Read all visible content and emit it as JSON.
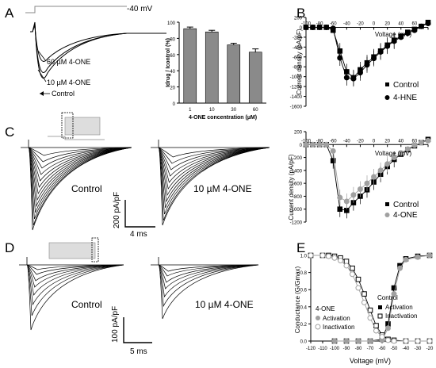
{
  "panel_labels": {
    "A": "A",
    "B": "B",
    "C": "C",
    "D": "D",
    "E": "E"
  },
  "panel_a": {
    "voltage_label": "-40 mV",
    "trace_labels": [
      "60 µM 4-ONE",
      "10 µM 4-ONE",
      "Control"
    ]
  },
  "panel_c": {
    "label_control": "Control",
    "label_drug": "10 µM 4-ONE",
    "scale_y": "200 pA/pF",
    "scale_x": "4 ms"
  },
  "panel_d": {
    "label_control": "Control",
    "label_drug": "10 µM 4-ONE",
    "scale_y": "100 pA/pF",
    "scale_x": "5 ms"
  },
  "chart_data": [
    {
      "id": "A-bar",
      "type": "bar",
      "categories": [
        "1",
        "10",
        "30",
        "60"
      ],
      "values": [
        92,
        88,
        72,
        63
      ],
      "errors": [
        2,
        2,
        2,
        4
      ],
      "ylabel": "Idrug / Icontrol (%)",
      "xlabel": "4-ONE concentration (µM)",
      "ylim": [
        0,
        100
      ],
      "yticks": [
        "0",
        "20",
        "40",
        "60",
        "80",
        "100"
      ],
      "bar_color": "#8a8a8a"
    },
    {
      "id": "B-IV",
      "type": "line",
      "ylabel": "Current density (pA/pF)",
      "xlabel": "Voltage (mV)",
      "xlim": [
        -100,
        80
      ],
      "ylim": [
        -1600,
        200
      ],
      "xticks": [
        "-100",
        "-80",
        "-60",
        "-40",
        "-20",
        "0",
        "20",
        "40",
        "60",
        "80"
      ],
      "yticks": [
        "200",
        "0",
        "-200",
        "-400",
        "-600",
        "-800",
        "-1000",
        "-1200",
        "-1400",
        "-1600"
      ],
      "legend": [
        "Control",
        "4-HNE"
      ],
      "series": [
        {
          "name": "Control",
          "marker": "square",
          "color": "#000000",
          "x": [
            -100,
            -90,
            -80,
            -70,
            -60,
            -50,
            -40,
            -30,
            -20,
            -10,
            0,
            10,
            20,
            30,
            40,
            50,
            60,
            70,
            80
          ],
          "y": [
            0,
            0,
            0,
            0,
            -60,
            -480,
            -900,
            -1020,
            -860,
            -720,
            -600,
            -480,
            -360,
            -260,
            -180,
            -100,
            -40,
            20,
            100
          ]
        },
        {
          "name": "4-HNE",
          "marker": "circle",
          "color": "#000000",
          "x": [
            -100,
            -90,
            -80,
            -70,
            -60,
            -50,
            -40,
            -30,
            -20,
            -10,
            0,
            10,
            20,
            30,
            40,
            50,
            60,
            70,
            80
          ],
          "y": [
            0,
            0,
            0,
            0,
            -20,
            -620,
            -1020,
            -1040,
            -920,
            -760,
            -630,
            -500,
            -380,
            -280,
            -200,
            -120,
            -60,
            20,
            80
          ]
        }
      ]
    },
    {
      "id": "C-IV",
      "type": "line",
      "ylabel": "Current density (pA/pF)",
      "xlabel": "Voltage (mV)",
      "xlim": [
        -100,
        80
      ],
      "ylim": [
        -1200,
        200
      ],
      "xticks": [
        "-100",
        "-80",
        "-60",
        "-40",
        "-20",
        "0",
        "20",
        "40",
        "60",
        "80"
      ],
      "yticks": [
        "200",
        "0",
        "-200",
        "-400",
        "-600",
        "-800",
        "-1000",
        "-1200"
      ],
      "legend": [
        "Control",
        "4-ONE"
      ],
      "series": [
        {
          "name": "Control",
          "marker": "square",
          "color": "#000000",
          "x": [
            -100,
            -90,
            -80,
            -70,
            -60,
            -50,
            -40,
            -30,
            -20,
            -10,
            0,
            10,
            20,
            30,
            40,
            50,
            60,
            70,
            80
          ],
          "y": [
            0,
            0,
            0,
            0,
            -250,
            -1000,
            -1020,
            -900,
            -800,
            -700,
            -580,
            -460,
            -340,
            -230,
            -150,
            -80,
            -20,
            30,
            80
          ]
        },
        {
          "name": "4-ONE",
          "marker": "circle",
          "color": "#a0a0a0",
          "x": [
            -100,
            -90,
            -80,
            -70,
            -60,
            -50,
            -40,
            -30,
            -20,
            -10,
            0,
            10,
            20,
            30,
            40,
            50,
            60,
            70,
            80
          ],
          "y": [
            0,
            0,
            0,
            0,
            -100,
            -820,
            -880,
            -780,
            -690,
            -600,
            -500,
            -400,
            -300,
            -200,
            -130,
            -70,
            -10,
            30,
            60
          ]
        }
      ]
    },
    {
      "id": "E-conductance",
      "type": "line",
      "ylabel": "Conductance (G/Gmax)",
      "xlabel": "Voltage (mV)",
      "xlim": [
        -120,
        -20
      ],
      "ylim": [
        0,
        1
      ],
      "xticks": [
        "-120",
        "-110",
        "-100",
        "-90",
        "-80",
        "-70",
        "-60",
        "-50",
        "-40",
        "-30",
        "-20"
      ],
      "yticks": [
        "0.0",
        "0.2",
        "0.4",
        "0.6",
        "0.8",
        "1.0"
      ],
      "legend_groups": [
        {
          "title": "Control",
          "entries": [
            "Activation",
            "Inactivation"
          ]
        },
        {
          "title": "4-ONE",
          "entries": [
            "Activation",
            "Inactivation"
          ]
        }
      ],
      "series": [
        {
          "name": "Control Activation",
          "marker": "filled-square",
          "color": "#000000",
          "x": [
            -100,
            -90,
            -80,
            -70,
            -60,
            -55,
            -50,
            -45,
            -40,
            -30,
            -20
          ],
          "y": [
            0,
            0,
            0,
            0,
            0.02,
            0.2,
            0.62,
            0.88,
            0.96,
            0.99,
            1.0
          ]
        },
        {
          "name": "Control Inactivation",
          "marker": "open-square",
          "color": "#000000",
          "x": [
            -120,
            -110,
            -105,
            -100,
            -95,
            -90,
            -85,
            -80,
            -75,
            -70,
            -65,
            -60,
            -55,
            -50,
            -40,
            -30,
            -20
          ],
          "y": [
            1.0,
            1.0,
            1.0,
            0.99,
            0.97,
            0.93,
            0.85,
            0.72,
            0.55,
            0.36,
            0.18,
            0.07,
            0.02,
            0.01,
            0,
            0,
            0
          ]
        },
        {
          "name": "4-ONE Activation",
          "marker": "filled-circle",
          "color": "#a0a0a0",
          "x": [
            -100,
            -90,
            -80,
            -70,
            -60,
            -55,
            -50,
            -45,
            -40,
            -30,
            -20
          ],
          "y": [
            0,
            0,
            0,
            0,
            0.01,
            0.15,
            0.55,
            0.85,
            0.95,
            0.98,
            1.0
          ]
        },
        {
          "name": "4-ONE Inactivation",
          "marker": "open-circle",
          "color": "#a0a0a0",
          "x": [
            -120,
            -110,
            -105,
            -100,
            -95,
            -90,
            -85,
            -80,
            -75,
            -70,
            -65,
            -60,
            -55,
            -50,
            -40,
            -30,
            -20
          ],
          "y": [
            1.0,
            1.0,
            0.99,
            0.97,
            0.94,
            0.88,
            0.78,
            0.62,
            0.45,
            0.27,
            0.12,
            0.05,
            0.01,
            0,
            0,
            0,
            0
          ]
        }
      ]
    }
  ]
}
